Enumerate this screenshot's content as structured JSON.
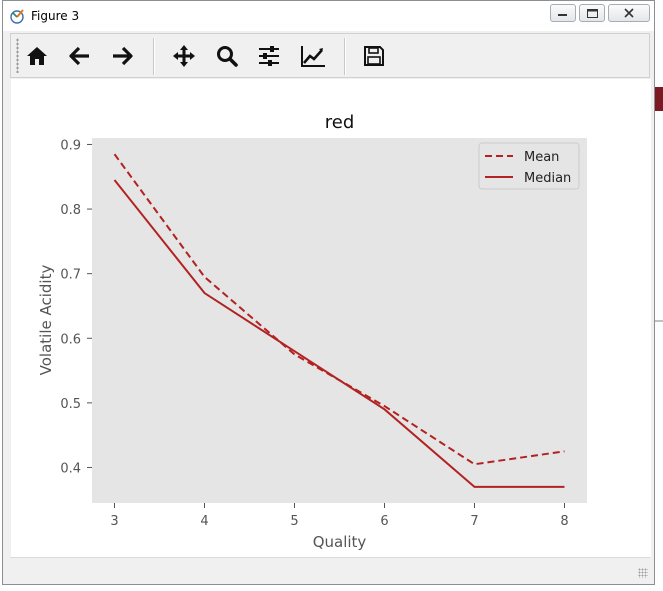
{
  "window": {
    "title": "Figure 3"
  },
  "chart_data": {
    "type": "line",
    "title": "red",
    "xlabel": "Quality",
    "ylabel": "Volatile Acidity",
    "x": [
      3,
      4,
      5,
      6,
      7,
      8
    ],
    "xlim": [
      2.75,
      8.25
    ],
    "ylim": [
      0.345,
      0.91
    ],
    "xticks": [
      "3",
      "4",
      "5",
      "6",
      "7",
      "8"
    ],
    "yticks": [
      "0.4",
      "0.5",
      "0.6",
      "0.7",
      "0.8",
      "0.9"
    ],
    "series": [
      {
        "name": "Mean",
        "style": "dashed",
        "color": "#b22222",
        "values": [
          0.885,
          0.695,
          0.575,
          0.495,
          0.405,
          0.425
        ]
      },
      {
        "name": "Median",
        "style": "solid",
        "color": "#b22222",
        "values": [
          0.845,
          0.67,
          0.58,
          0.49,
          0.37,
          0.37
        ]
      }
    ],
    "grid": false,
    "legend_position": "top-right",
    "plot_background": "#e5e5e5"
  }
}
